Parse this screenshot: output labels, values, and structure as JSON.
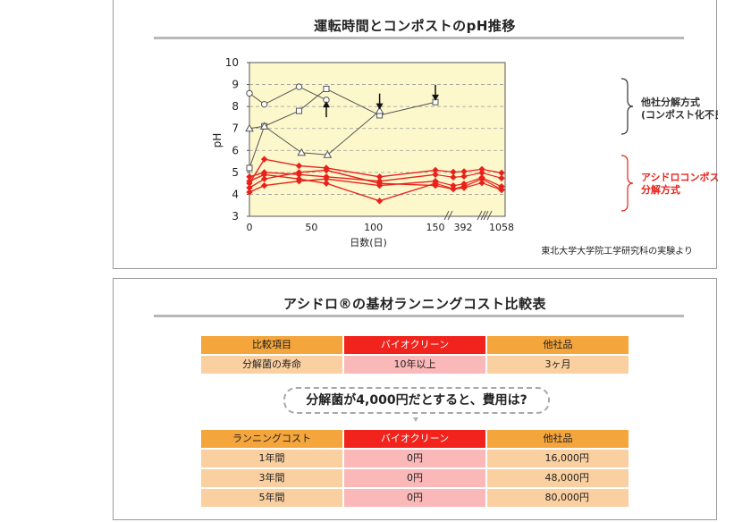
{
  "chart_panel": {
    "title": "運転時間とコンポストのpH推移",
    "source_note": "東北大学大学院工学研究科の実験より"
  },
  "chart_data": {
    "type": "line",
    "title": "運転時間とコンポストのpH推移",
    "xlabel": "日数(日)",
    "ylabel": "pH",
    "ylim": [
      3,
      10
    ],
    "grid": true,
    "y_ticks": [
      "3",
      "4",
      "5",
      "6",
      "7",
      "8",
      "9",
      "10"
    ],
    "x_tick_labels": [
      "0",
      "50",
      "100",
      "150",
      "392",
      "1058"
    ],
    "x_break_marks": [
      "//",
      "//",
      "//"
    ],
    "groups": [
      {
        "label": "他社分解方式\n(コンポスト化不良)",
        "color": "#333333"
      },
      {
        "label": "アシドロコンポスト\n分解方式",
        "color": "#e8221b"
      }
    ],
    "series": [
      {
        "marker": "circle",
        "color": "#555555",
        "x": [
          0,
          12,
          40,
          62
        ],
        "y": [
          8.6,
          8.1,
          8.9,
          8.3
        ]
      },
      {
        "marker": "square",
        "color": "#555555",
        "x": [
          0,
          12,
          40,
          62,
          105,
          150
        ],
        "y": [
          5.2,
          7.1,
          7.8,
          8.8,
          7.6,
          8.2
        ]
      },
      {
        "marker": "triangle",
        "color": "#555555",
        "x": [
          0,
          12,
          42,
          63,
          105
        ],
        "y": [
          7.0,
          7.1,
          5.9,
          5.8,
          7.8
        ]
      },
      {
        "marker": "diamond",
        "color": "#e8221b",
        "x": [
          0,
          12,
          40,
          62,
          105,
          150
        ],
        "y": [
          4.5,
          5.6,
          5.3,
          5.2,
          4.8,
          5.1
        ]
      },
      {
        "marker": "diamond",
        "color": "#e8221b",
        "x": [
          0,
          12,
          40,
          62,
          105,
          150
        ],
        "y": [
          4.8,
          5.0,
          4.9,
          4.8,
          4.6,
          4.9
        ]
      },
      {
        "marker": "diamond",
        "color": "#e8221b",
        "x": [
          0,
          12,
          40,
          62,
          105,
          150
        ],
        "y": [
          4.3,
          4.7,
          5.0,
          5.1,
          4.5,
          4.4
        ]
      },
      {
        "marker": "diamond",
        "color": "#e8221b",
        "x": [
          0,
          12,
          40,
          62,
          105,
          150
        ],
        "y": [
          4.1,
          4.4,
          4.6,
          4.7,
          4.4,
          4.6
        ]
      },
      {
        "marker": "diamond",
        "color": "#e8221b",
        "x": [
          0,
          12,
          40,
          62,
          105,
          150
        ],
        "y": [
          4.6,
          4.9,
          4.7,
          4.5,
          3.7,
          4.5
        ]
      }
    ],
    "annotation_arrows": [
      {
        "x": 62,
        "y": 8.0,
        "direction": "up"
      },
      {
        "x": 105,
        "y": 8.1,
        "direction": "down"
      },
      {
        "x": 150,
        "y": 8.5,
        "direction": "down"
      }
    ]
  },
  "table_panel": {
    "title": "アシドロ®の基材ランニングコスト比較表",
    "table1": {
      "headers": [
        "比較項目",
        "バイオクリーン",
        "他社品"
      ],
      "rows": [
        [
          "分解菌の寿命",
          "10年以上",
          "3ヶ月"
        ]
      ]
    },
    "question": "分解菌が4,000円だとすると、費用は?",
    "table2": {
      "headers": [
        "ランニングコスト",
        "バイオクリーン",
        "他社品"
      ],
      "rows": [
        [
          "1年間",
          "0円",
          "16,000円"
        ],
        [
          "3年間",
          "0円",
          "48,000円"
        ],
        [
          "5年間",
          "0円",
          "80,000円"
        ]
      ]
    }
  }
}
